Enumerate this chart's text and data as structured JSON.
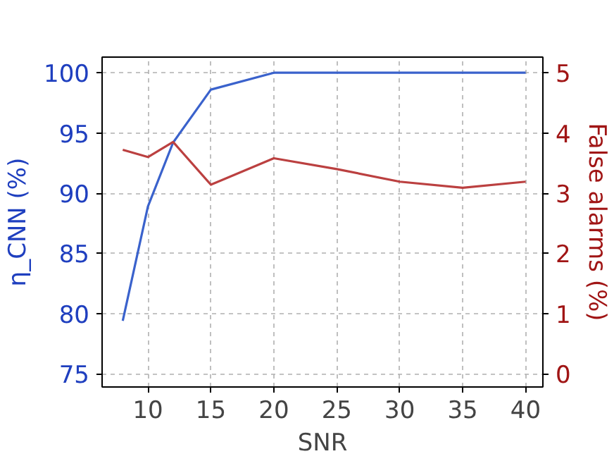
{
  "chart_data": {
    "type": "line",
    "xlabel": "SNR",
    "ylabel": "η_CNN (%)",
    "y2label": "False alarms (%)",
    "x": [
      8,
      10,
      12,
      15,
      20,
      25,
      30,
      35,
      40
    ],
    "series": [
      {
        "color": "#3a62cc",
        "values": [
          79.4,
          88.9,
          94.2,
          98.6,
          100,
          100,
          100,
          100,
          100
        ]
      },
      {
        "color": "#bb4040",
        "axis": "y2",
        "values": [
          3.72,
          3.6,
          3.85,
          3.14,
          3.58,
          3.4,
          3.19,
          3.09,
          3.19
        ]
      }
    ],
    "xlim": [
      6.36,
      41.37
    ],
    "xticks": [
      10,
      15,
      20,
      25,
      30,
      35,
      40
    ],
    "ylim": [
      73.9,
      101.3
    ],
    "yticks": [
      75,
      80,
      85,
      90,
      95,
      100
    ],
    "y2lim": [
      -0.22,
      5.26
    ],
    "y2ticks": [
      0,
      1,
      2,
      3,
      4,
      5
    ],
    "grid": true,
    "marker": "none",
    "line_style": "solid"
  }
}
